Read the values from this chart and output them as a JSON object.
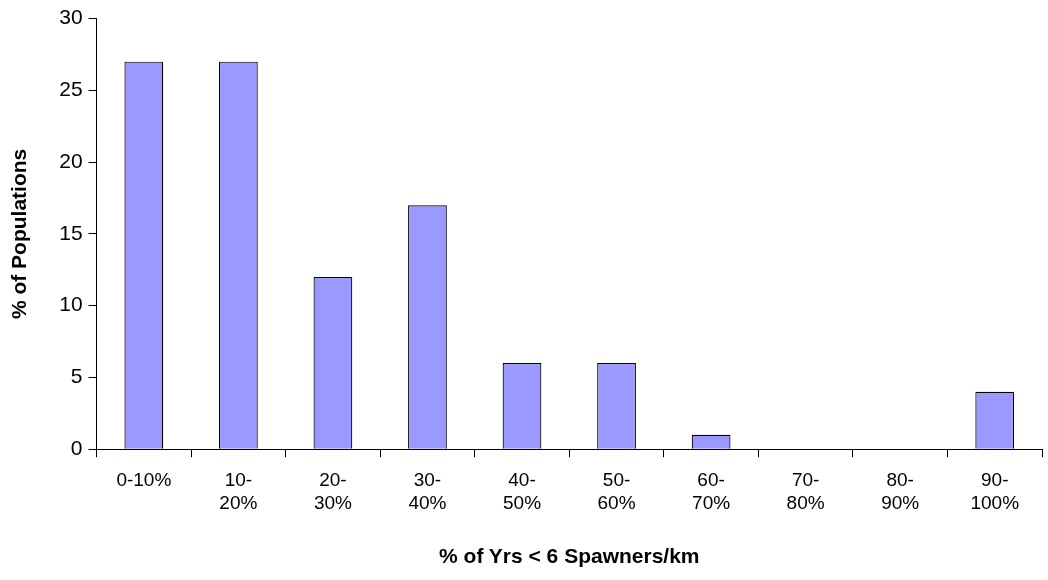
{
  "chart_data": {
    "type": "bar",
    "xlabel": "% of Yrs < 6 Spawners/km",
    "ylabel": "% of Populations",
    "categories": [
      "0-10%",
      "10-20%",
      "20-30%",
      "30-40%",
      "40-50%",
      "50-60%",
      "60-70%",
      "70-80%",
      "80-90%",
      "90-100%"
    ],
    "values": [
      27,
      27,
      12,
      17,
      6,
      6,
      1,
      0,
      0,
      4
    ],
    "color": "#9999ff",
    "ylim": [
      0,
      30
    ],
    "yticks": [
      0,
      5,
      10,
      15,
      20,
      25,
      30
    ],
    "grid": false,
    "legend": false
  }
}
